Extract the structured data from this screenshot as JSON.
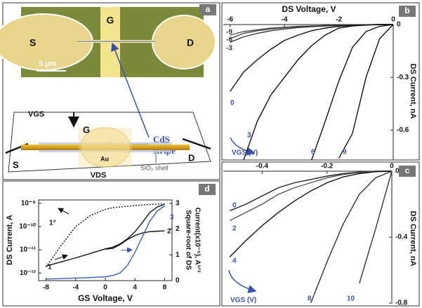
{
  "panel_a": {
    "label": "a",
    "photo": {
      "source": "S",
      "gate": "G",
      "drain": "D",
      "scale": "5 μm"
    },
    "callout": [
      "CdS",
      "stripe"
    ],
    "schematic": {
      "vgs": "VGS",
      "gate": "G",
      "source": "S",
      "drain": "D",
      "metal": "Au",
      "shell": "SiO₂ shell",
      "vds": "VDS"
    }
  },
  "chart_data": [
    {
      "type": "line",
      "panel": "b",
      "xlabel": "DS Voltage, V",
      "ylabel": "DS Current, nA",
      "legend_title": "VGS (V)",
      "x": [
        -6,
        -5.5,
        -5,
        -4.5,
        -4,
        -3.5,
        -3,
        -2.5,
        -2,
        -1.5,
        -1,
        -0.5,
        0
      ],
      "xlim": [
        -6.25,
        0
      ],
      "xticks": [
        -6,
        -4,
        -2,
        0
      ],
      "ylim": [
        -0.77,
        0
      ],
      "yticks": [
        0,
        -0.3,
        -0.6
      ],
      "series": [
        {
          "name": "-9",
          "color": "#555555",
          "values": [
            -0.06,
            -0.04,
            -0.03,
            -0.02,
            -0.015,
            -0.01,
            -0.008,
            -0.005,
            -0.003,
            -0.002,
            -0.001,
            0,
            0
          ]
        },
        {
          "name": "-6",
          "color": "#444444",
          "values": [
            -0.08,
            -0.05,
            -0.035,
            -0.025,
            -0.018,
            -0.012,
            -0.009,
            -0.006,
            -0.004,
            -0.002,
            -0.001,
            0,
            0
          ]
        },
        {
          "name": "-3",
          "color": "#333333",
          "values": [
            -0.1,
            -0.07,
            -0.05,
            -0.035,
            -0.025,
            -0.017,
            -0.012,
            -0.008,
            -0.005,
            -0.003,
            -0.001,
            0,
            0
          ]
        },
        {
          "name": "0",
          "color": "#111111",
          "values": [
            -0.38,
            -0.27,
            -0.2,
            -0.14,
            -0.09,
            -0.06,
            -0.035,
            -0.02,
            -0.01,
            -0.005,
            -0.002,
            0,
            0
          ]
        },
        {
          "name": "3",
          "color": "#111111",
          "values": [
            null,
            -0.77,
            -0.55,
            -0.4,
            -0.3,
            -0.2,
            -0.12,
            -0.06,
            -0.02,
            -0.008,
            -0.003,
            0,
            0
          ]
        },
        {
          "name": "6",
          "color": "#111111",
          "values": [
            null,
            null,
            null,
            null,
            null,
            null,
            -0.77,
            -0.55,
            -0.32,
            -0.13,
            -0.04,
            -0.01,
            0
          ]
        },
        {
          "name": "9",
          "color": "#111111",
          "values": [
            null,
            null,
            null,
            null,
            null,
            null,
            null,
            null,
            -0.76,
            -0.62,
            -0.3,
            -0.08,
            0
          ]
        }
      ]
    },
    {
      "type": "line",
      "panel": "c",
      "ylabel": "DS Current, nA",
      "legend_title": "VGS (V)",
      "x": [
        -0.5,
        -0.45,
        -0.4,
        -0.35,
        -0.3,
        -0.25,
        -0.2,
        -0.15,
        -0.1,
        -0.05,
        0
      ],
      "xlim": [
        -0.52,
        0
      ],
      "xticks": [
        -0.4,
        -0.2,
        0
      ],
      "ylim": [
        -0.8,
        0
      ],
      "yticks": [
        0,
        -0.4,
        -0.8
      ],
      "series": [
        {
          "name": "0",
          "color": "#222222",
          "values": [
            -0.24,
            -0.2,
            -0.15,
            -0.1,
            -0.07,
            -0.05,
            -0.03,
            -0.015,
            -0.005,
            0,
            0
          ]
        },
        {
          "name": "2",
          "color": "#555555",
          "values": [
            -0.3,
            -0.25,
            -0.2,
            -0.14,
            -0.1,
            -0.07,
            -0.04,
            -0.02,
            -0.008,
            0,
            0
          ]
        },
        {
          "name": "4",
          "color": "#111111",
          "values": [
            -0.52,
            -0.42,
            -0.33,
            -0.25,
            -0.18,
            -0.12,
            -0.07,
            -0.035,
            -0.015,
            -0.003,
            0
          ]
        },
        {
          "name": "8",
          "color": "#333333",
          "values": [
            null,
            null,
            null,
            null,
            null,
            -0.8,
            -0.55,
            -0.32,
            -0.14,
            -0.04,
            0
          ]
        },
        {
          "name": "10",
          "color": "#333333",
          "values": [
            null,
            null,
            null,
            null,
            null,
            null,
            null,
            null,
            -0.68,
            -0.35,
            0
          ]
        }
      ]
    },
    {
      "type": "line",
      "panel": "d",
      "xlabel": "GS Voltage, V",
      "ylabel": "DS Current, A",
      "y2label": [
        "Square-root of DS",
        "Current(x10⁻⁵), A¹ᐟ²"
      ],
      "x": [
        -8,
        -6,
        -4,
        -2,
        0,
        1,
        2,
        3,
        4,
        5,
        6,
        7,
        8
      ],
      "xlim": [
        -9,
        9
      ],
      "xticks": [
        -8,
        -4,
        0,
        4,
        8
      ],
      "yscale": "log",
      "ylim": [
        4.7e-13,
        1.4e-09
      ],
      "yticks": [
        {
          "value": 1e-12,
          "label": "10⁻¹²"
        },
        {
          "value": 1e-11,
          "label": "10⁻¹¹"
        },
        {
          "value": 1e-10,
          "label": "10⁻¹⁰"
        },
        {
          "value": 1e-09,
          "label": "10⁻⁹"
        }
      ],
      "y2lim": [
        0,
        3.13
      ],
      "y2ticks": [
        0,
        1,
        2,
        3
      ],
      "series": [
        {
          "name": "1",
          "color": "#111111",
          "values": [
            2e-12,
            3e-12,
            4.5e-12,
            7e-12,
            1.1e-11,
            1.3e-11,
            1.8e-11,
            3e-11,
            6e-11,
            1.5e-10,
            4e-10,
            7e-10,
            9e-10
          ]
        },
        {
          "name": "1°",
          "color": "#111111",
          "dash": true,
          "values": [
            1.8e-12,
            1.5e-11,
            1e-10,
            3e-10,
            5.5e-10,
            6.5e-10,
            7e-10,
            7.5e-10,
            8e-10,
            8.5e-10,
            9e-10,
            9.2e-10,
            9.5e-10
          ]
        },
        {
          "name": "2",
          "color": "#111111",
          "axis": "y2",
          "values": [
            null,
            null,
            null,
            null,
            1.22,
            1.25,
            1.4,
            1.6,
            1.75,
            1.85,
            1.9,
            1.92,
            1.93
          ]
        },
        {
          "name": "3",
          "color": "#3a5fc8",
          "axis": "y2",
          "values": [
            0.06,
            0.08,
            0.1,
            0.12,
            0.15,
            0.2,
            0.3,
            0.6,
            1.1,
            1.7,
            2.3,
            2.7,
            2.9
          ]
        }
      ]
    }
  ]
}
